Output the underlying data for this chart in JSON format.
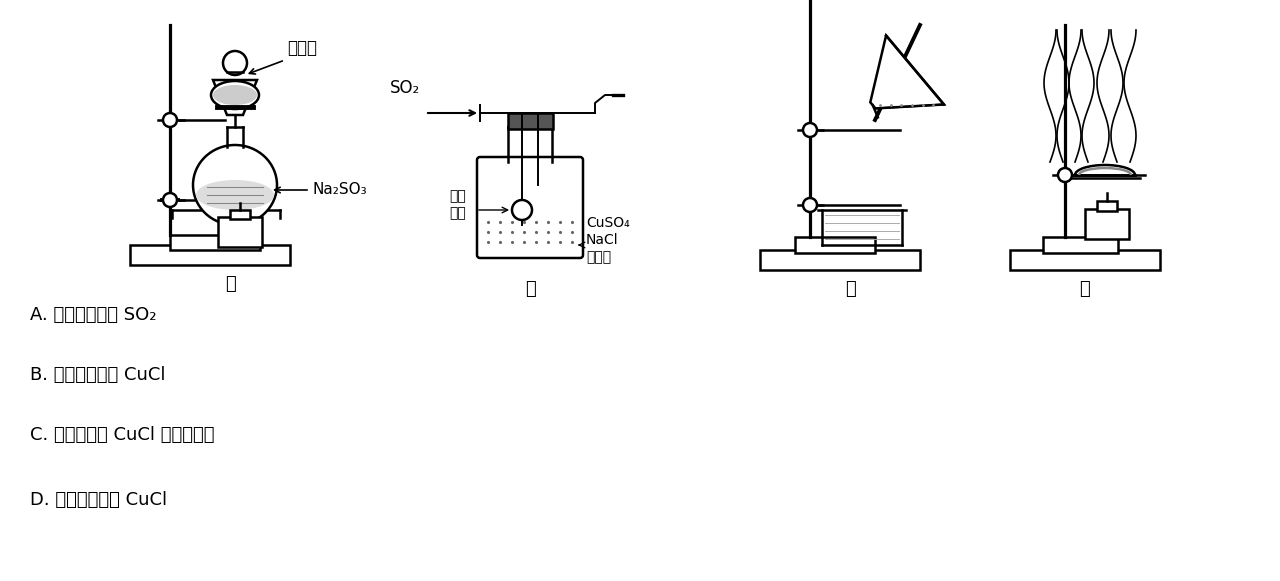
{
  "background_color": "#ffffff",
  "fig_width": 12.8,
  "fig_height": 5.81,
  "options": [
    "A. 用装置甲制取 SO₂",
    "B. 用装置乙制取 CuCl",
    "C. 用装置丙将 CuCl 与母液分离",
    "D. 用装置丁干燥 CuCl"
  ],
  "font_size_label": 10,
  "font_size_option": 13,
  "font_size_apparatus": 13,
  "font_size_chem": 11
}
